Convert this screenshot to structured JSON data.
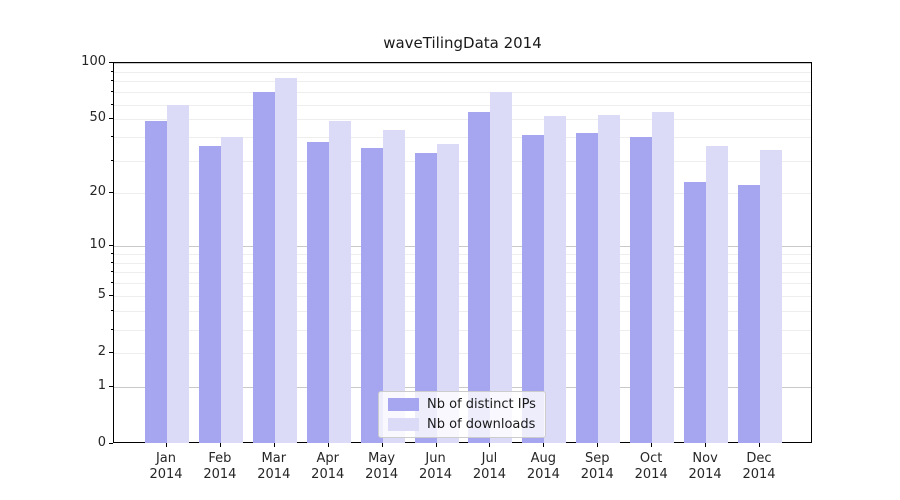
{
  "figure": {
    "title": "waveTilingData 2014"
  },
  "chart_data": {
    "type": "bar",
    "title": "waveTilingData 2014",
    "categories": [
      "Jan 2014",
      "Feb 2014",
      "Mar 2014",
      "Apr 2014",
      "May 2014",
      "Jun 2014",
      "Jul 2014",
      "Aug 2014",
      "Sep 2014",
      "Oct 2014",
      "Nov 2014",
      "Dec 2014"
    ],
    "x_ticks": [
      {
        "line1": "Jan",
        "line2": "2014"
      },
      {
        "line1": "Feb",
        "line2": "2014"
      },
      {
        "line1": "Mar",
        "line2": "2014"
      },
      {
        "line1": "Apr",
        "line2": "2014"
      },
      {
        "line1": "May",
        "line2": "2014"
      },
      {
        "line1": "Jun",
        "line2": "2014"
      },
      {
        "line1": "Jul",
        "line2": "2014"
      },
      {
        "line1": "Aug",
        "line2": "2014"
      },
      {
        "line1": "Sep",
        "line2": "2014"
      },
      {
        "line1": "Oct",
        "line2": "2014"
      },
      {
        "line1": "Nov",
        "line2": "2014"
      },
      {
        "line1": "Dec",
        "line2": "2014"
      }
    ],
    "series": [
      {
        "name": "Nb of distinct IPs",
        "color": "#a5a5f0",
        "values": [
          49,
          36,
          70,
          38,
          35,
          33,
          55,
          41,
          42,
          40,
          23,
          22
        ]
      },
      {
        "name": "Nb of downloads",
        "color": "#dbdbf8",
        "values": [
          60,
          40,
          83,
          49,
          44,
          37,
          70,
          52,
          53,
          55,
          36,
          34
        ]
      }
    ],
    "yscale": "log1p",
    "ylim": [
      0,
      100
    ],
    "y_ticks": [
      {
        "value": 100,
        "label": "100"
      },
      {
        "value": 50,
        "label": "50"
      },
      {
        "value": 20,
        "label": "20"
      },
      {
        "value": 10,
        "label": "10"
      },
      {
        "value": 5,
        "label": "5"
      },
      {
        "value": 2,
        "label": "2"
      },
      {
        "value": 1,
        "label": "1"
      },
      {
        "value": 0,
        "label": "0"
      }
    ],
    "y_major_grid": [
      1,
      10,
      100
    ],
    "y_minor_grid": [
      2,
      3,
      4,
      5,
      6,
      7,
      8,
      9,
      20,
      30,
      40,
      50,
      60,
      70,
      80,
      90
    ],
    "y_unlabeled_minor_ticks": [
      3,
      4,
      6,
      7,
      8,
      9,
      30,
      40,
      60,
      70,
      80,
      90
    ],
    "grid": true,
    "legend_position": "lower center",
    "xlabel": "",
    "ylabel": ""
  }
}
